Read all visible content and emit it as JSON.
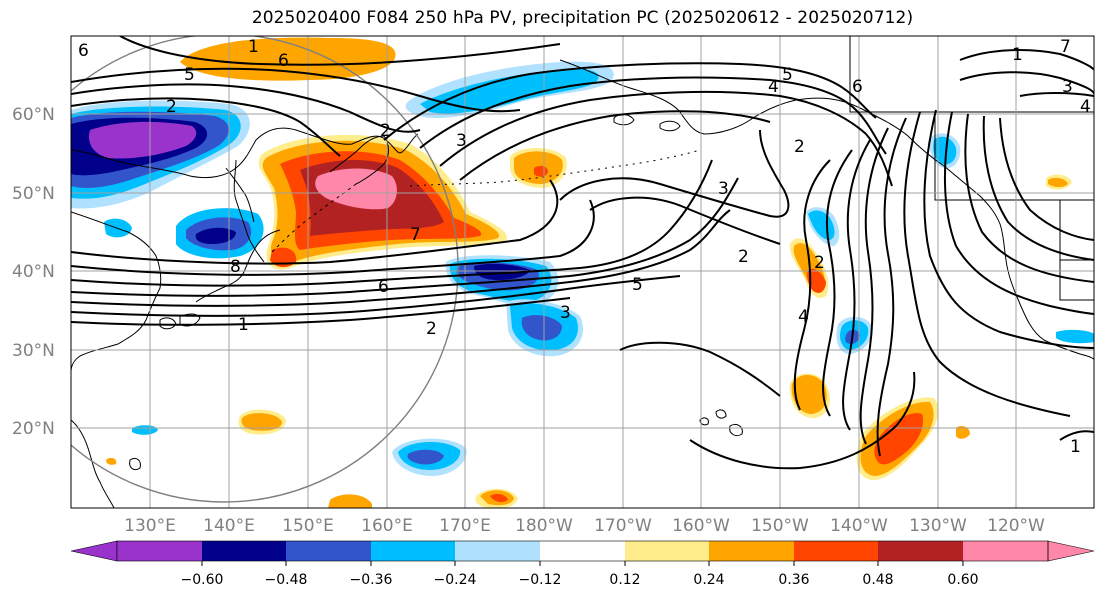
{
  "title": "2025020400 F084 250 hPa PV, precipitation PC (2025020612 - 2025020712)",
  "lat_labels": [
    "60°N",
    "50°N",
    "40°N",
    "30°N",
    "20°N"
  ],
  "lon_labels": [
    "130°E",
    "140°E",
    "150°E",
    "160°E",
    "170°E",
    "180°W",
    "170°W",
    "160°W",
    "150°W",
    "140°W",
    "130°W",
    "120°W"
  ],
  "colorbar": {
    "ticks": [
      "−0.60",
      "−0.48",
      "−0.36",
      "−0.24",
      "−0.12",
      "0.12",
      "0.24",
      "0.36",
      "0.48",
      "0.60"
    ],
    "colors": [
      "#9933cc",
      "#00008b",
      "#3355cc",
      "#00bfff",
      "#b0e2ff",
      "#ffffff",
      "#ffec8b",
      "#ffa500",
      "#ff4500",
      "#b22222",
      "#ff88aa"
    ]
  },
  "pv_contour_labels": [
    "1",
    "6",
    "5",
    "2",
    "2",
    "3",
    "4",
    "5",
    "6",
    "7",
    "2",
    "3",
    "6",
    "1",
    "2",
    "8",
    "6",
    "5",
    "3",
    "2",
    "2",
    "4",
    "3",
    "1",
    "1",
    "4",
    "7"
  ]
}
